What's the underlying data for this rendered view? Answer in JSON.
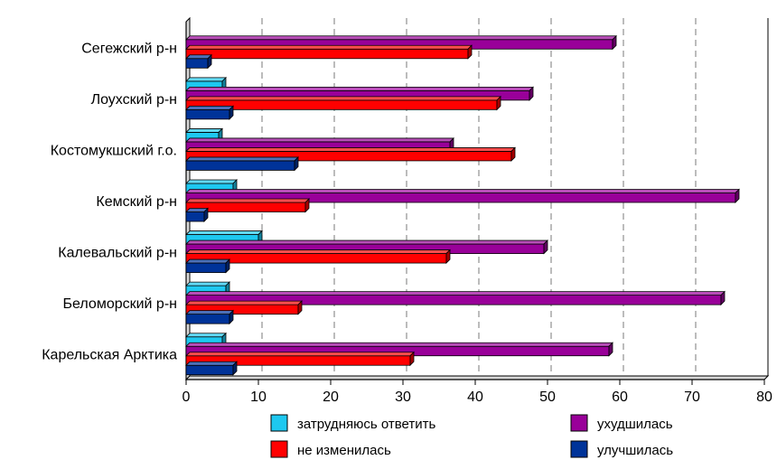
{
  "chart_data": {
    "type": "bar",
    "orientation": "horizontal",
    "categories": [
      "Сегежский р-н",
      "Лоухский р-н",
      "Костомукшский г.о.",
      "Кемский р-н",
      "Калевальский р-н",
      "Беломорский р-н",
      "Карельская Арктика"
    ],
    "series": [
      {
        "name": "затрудняюсь ответить",
        "color": "#1ec8f0",
        "values": [
          0,
          5,
          4.5,
          6.5,
          10,
          5.5,
          5
        ]
      },
      {
        "name": "ухудшилась",
        "color": "#990099",
        "values": [
          59,
          47.5,
          36.5,
          76,
          49.5,
          74,
          58.5
        ]
      },
      {
        "name": "не изменилась",
        "color": "#ff0000",
        "values": [
          39,
          43,
          45,
          16.5,
          36,
          15.5,
          31
        ]
      },
      {
        "name": "улучшилась",
        "color": "#003399",
        "values": [
          3,
          6,
          15,
          2.5,
          5.5,
          6,
          6.5
        ]
      }
    ],
    "xlim": [
      0,
      80
    ],
    "xticks": [
      "0",
      "10",
      "20",
      "30",
      "40",
      "50",
      "60",
      "70",
      "80"
    ],
    "grid": "vertical dashed",
    "legend_position": "bottom",
    "legend_order": [
      "затрудняюсь ответить",
      "ухудшилась",
      "не изменилась",
      "улучшилась"
    ]
  }
}
